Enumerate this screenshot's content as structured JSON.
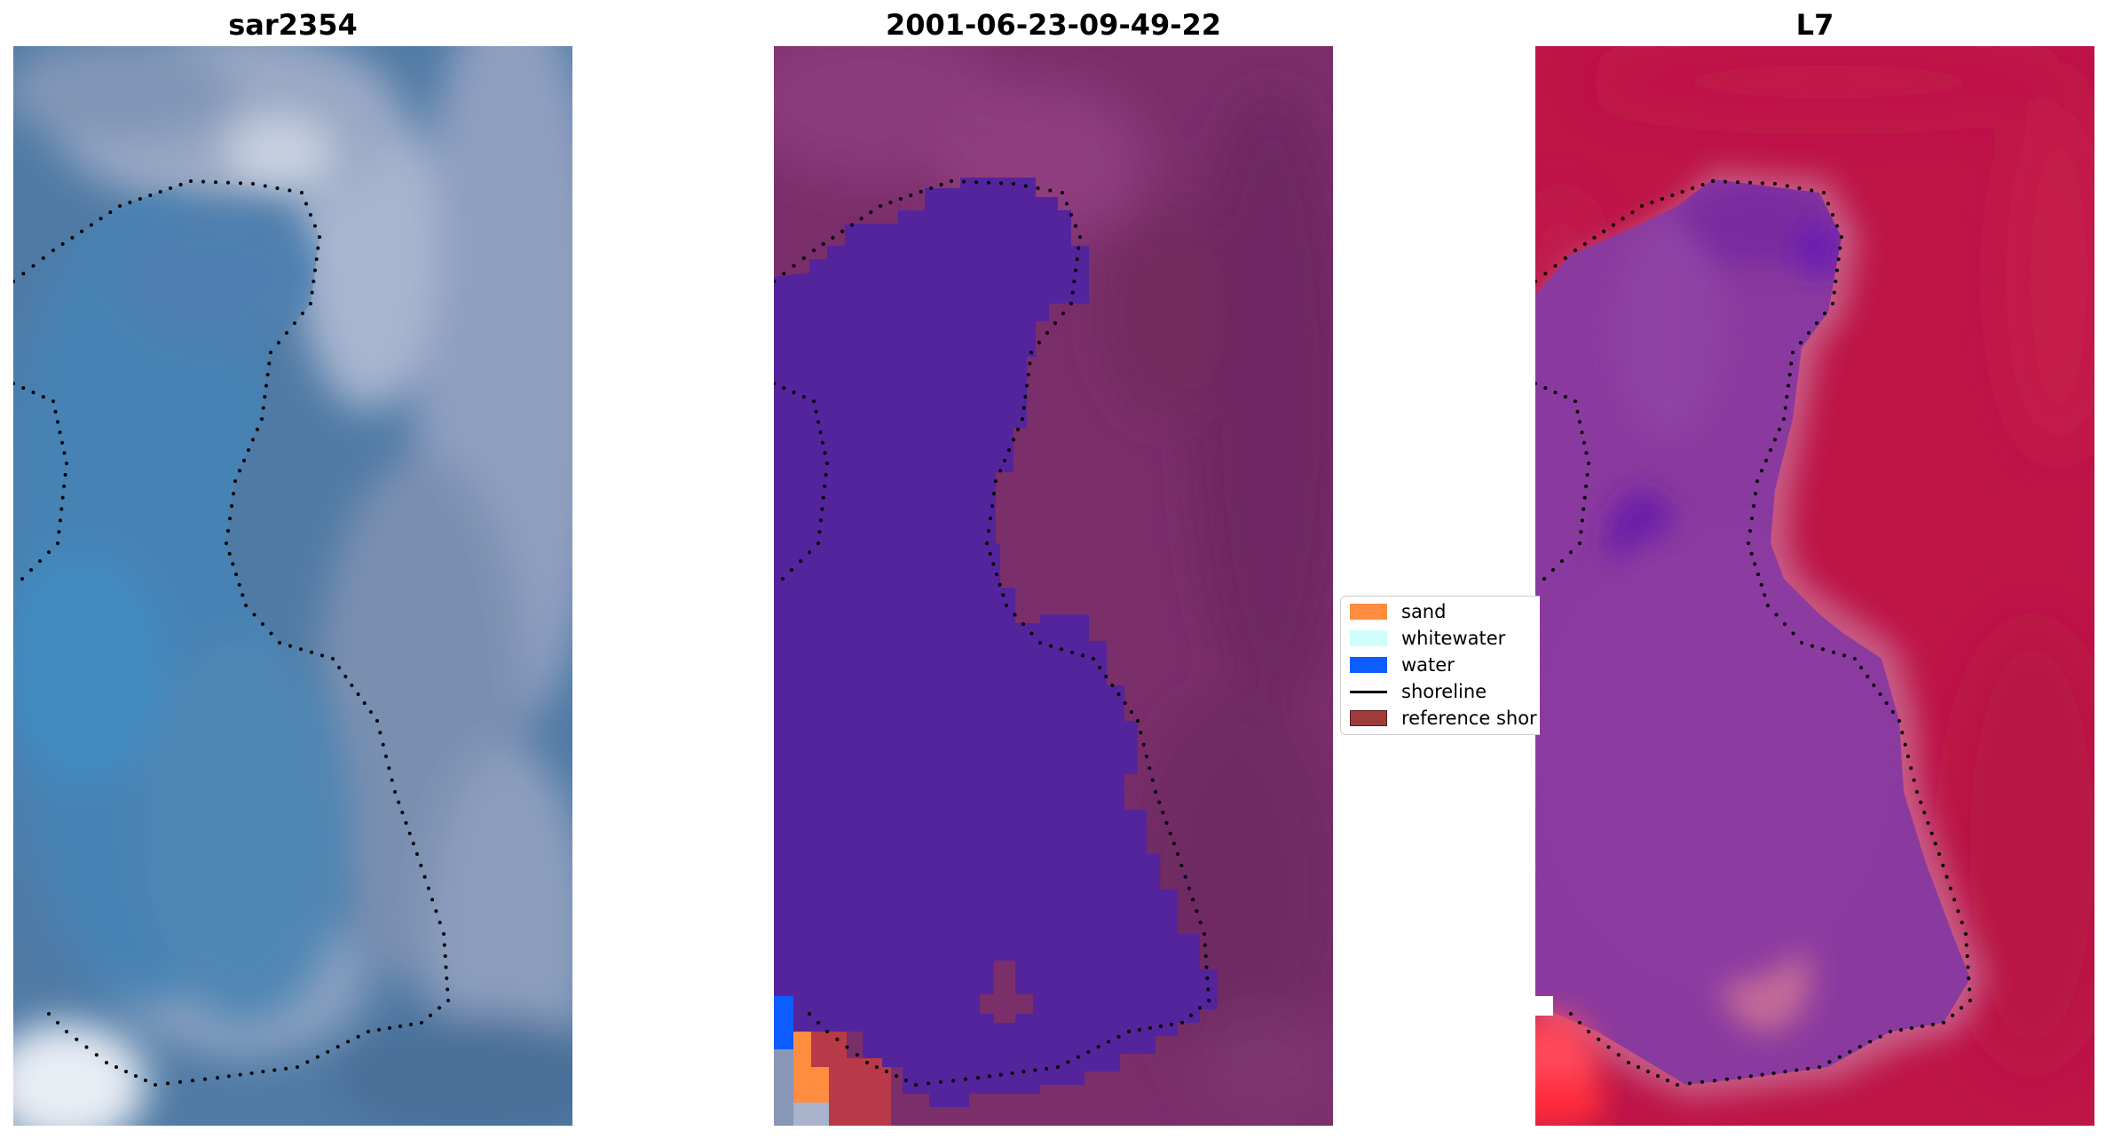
{
  "panels": [
    {
      "title": "sar2354",
      "kind": "rgb-image"
    },
    {
      "title": "2001-06-23-09-49-22",
      "kind": "classified-image"
    },
    {
      "title": "L7",
      "kind": "water-index-image"
    }
  ],
  "legend": {
    "items": [
      {
        "label": "sand",
        "color": "#ff8c3f",
        "type": "patch"
      },
      {
        "label": "whitewater",
        "color": "#cffdfb",
        "type": "patch"
      },
      {
        "label": "water",
        "color": "#0d5cff",
        "type": "patch"
      },
      {
        "label": "shoreline",
        "color": "#000000",
        "type": "line"
      },
      {
        "label": "reference shor",
        "color": "#9e3b3b",
        "type": "patch"
      }
    ]
  },
  "colors": {
    "ocean_rgb": "#4a7aa8",
    "class_water": "#54249c",
    "background_purple": "#7a2e6a",
    "index_red": "#bd1547",
    "index_purple": "#8a3a9e",
    "shoreline_dots": "#000000"
  }
}
